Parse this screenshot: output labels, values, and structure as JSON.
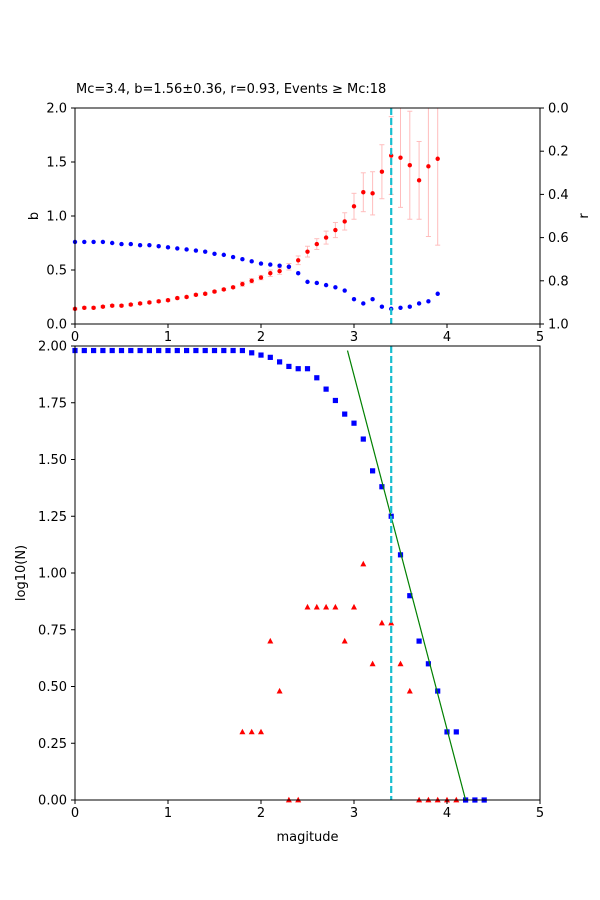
{
  "chart_data": [
    {
      "type": "scatter",
      "title": "Mc=3.4, b=1.56±0.36, r=0.93, Events ≥ Mc:18",
      "xlabel": "",
      "ylabel": "b",
      "y2label": "r",
      "xlim": [
        0,
        5
      ],
      "ylim": [
        0,
        2.0
      ],
      "y2lim": [
        1.0,
        0.0
      ],
      "y2_inverted": true,
      "xticks": [
        "0",
        "1",
        "2",
        "3",
        "4",
        "5"
      ],
      "yticks": [
        "0.0",
        "0.5",
        "1.0",
        "1.5",
        "2.0"
      ],
      "y2ticks": [
        "0.0",
        "0.2",
        "0.4",
        "0.6",
        "0.8",
        "1.0"
      ],
      "grid": false,
      "mc_line": 3.4,
      "colors": {
        "b": "#ff0000",
        "r": "#0000ff",
        "mc": "#17becf",
        "err": "#ffbdbd"
      },
      "series": [
        {
          "axis": "left",
          "marker": "circle",
          "color": "#ff0000",
          "x": [
            0.0,
            0.1,
            0.2,
            0.3,
            0.4,
            0.5,
            0.6,
            0.7,
            0.8,
            0.9,
            1.0,
            1.1,
            1.2,
            1.3,
            1.4,
            1.5,
            1.6,
            1.7,
            1.8,
            1.9,
            2.0,
            2.1,
            2.2,
            2.3,
            2.4,
            2.5,
            2.6,
            2.7,
            2.8,
            2.9,
            3.0,
            3.1,
            3.2,
            3.3,
            3.4,
            3.5,
            3.6,
            3.7,
            3.8,
            3.9
          ],
          "values": [
            0.14,
            0.15,
            0.15,
            0.16,
            0.17,
            0.17,
            0.18,
            0.19,
            0.2,
            0.21,
            0.22,
            0.24,
            0.25,
            0.27,
            0.28,
            0.3,
            0.32,
            0.34,
            0.37,
            0.4,
            0.43,
            0.47,
            0.49,
            0.53,
            0.59,
            0.67,
            0.74,
            0.8,
            0.87,
            0.95,
            1.09,
            1.22,
            1.21,
            1.41,
            1.56,
            1.54,
            1.47,
            1.33,
            1.46,
            1.53
          ],
          "err": [
            0.01,
            0.01,
            0.01,
            0.01,
            0.01,
            0.01,
            0.01,
            0.01,
            0.01,
            0.01,
            0.01,
            0.01,
            0.01,
            0.01,
            0.01,
            0.01,
            0.01,
            0.01,
            0.02,
            0.02,
            0.02,
            0.03,
            0.03,
            0.03,
            0.04,
            0.05,
            0.05,
            0.06,
            0.07,
            0.08,
            0.12,
            0.18,
            0.2,
            0.25,
            0.36,
            0.46,
            0.5,
            0.36,
            0.65,
            0.8
          ]
        },
        {
          "axis": "right",
          "marker": "circle",
          "color": "#0000ff",
          "x": [
            0.0,
            0.1,
            0.2,
            0.3,
            0.4,
            0.5,
            0.6,
            0.7,
            0.8,
            0.9,
            1.0,
            1.1,
            1.2,
            1.3,
            1.4,
            1.5,
            1.6,
            1.7,
            1.8,
            1.9,
            2.0,
            2.1,
            2.2,
            2.3,
            2.4,
            2.5,
            2.6,
            2.7,
            2.8,
            2.9,
            3.0,
            3.1,
            3.2,
            3.3,
            3.4,
            3.5,
            3.6,
            3.7,
            3.8,
            3.9
          ],
          "values": [
            0.62,
            0.62,
            0.62,
            0.62,
            0.625,
            0.63,
            0.63,
            0.635,
            0.635,
            0.64,
            0.645,
            0.65,
            0.655,
            0.66,
            0.665,
            0.675,
            0.68,
            0.69,
            0.7,
            0.71,
            0.72,
            0.725,
            0.73,
            0.735,
            0.765,
            0.805,
            0.81,
            0.82,
            0.83,
            0.845,
            0.885,
            0.905,
            0.885,
            0.92,
            0.93,
            0.925,
            0.92,
            0.905,
            0.895,
            0.86
          ]
        }
      ]
    },
    {
      "type": "scatter",
      "title": "",
      "xlabel": "magitude",
      "ylabel": "log10(N)",
      "xlim": [
        0,
        5
      ],
      "ylim": [
        0,
        2.0
      ],
      "xticks": [
        "0",
        "1",
        "2",
        "3",
        "4",
        "5"
      ],
      "yticks": [
        "0.00",
        "0.25",
        "0.50",
        "0.75",
        "1.00",
        "1.25",
        "1.50",
        "1.75",
        "2.00"
      ],
      "grid": false,
      "mc_line": 3.4,
      "fit_line": {
        "color": "#008000",
        "x": [
          2.93,
          4.2
        ],
        "values": [
          1.98,
          0.0
        ]
      },
      "series": [
        {
          "marker": "square",
          "color": "#0000ff",
          "x": [
            0.0,
            0.1,
            0.2,
            0.3,
            0.4,
            0.5,
            0.6,
            0.7,
            0.8,
            0.9,
            1.0,
            1.1,
            1.2,
            1.3,
            1.4,
            1.5,
            1.6,
            1.7,
            1.8,
            1.9,
            2.0,
            2.1,
            2.2,
            2.3,
            2.4,
            2.5,
            2.6,
            2.7,
            2.8,
            2.9,
            3.0,
            3.1,
            3.2,
            3.3,
            3.4,
            3.5,
            3.6,
            3.7,
            3.8,
            3.9,
            4.0,
            4.1,
            4.2,
            4.3,
            4.4
          ],
          "values": [
            1.98,
            1.98,
            1.98,
            1.98,
            1.98,
            1.98,
            1.98,
            1.98,
            1.98,
            1.98,
            1.98,
            1.98,
            1.98,
            1.98,
            1.98,
            1.98,
            1.98,
            1.98,
            1.98,
            1.97,
            1.96,
            1.95,
            1.93,
            1.91,
            1.9,
            1.9,
            1.86,
            1.81,
            1.76,
            1.7,
            1.66,
            1.59,
            1.45,
            1.38,
            1.25,
            1.08,
            0.9,
            0.7,
            0.6,
            0.48,
            0.3,
            0.3,
            0.0,
            0.0,
            0.0
          ]
        },
        {
          "marker": "triangle",
          "color": "#ff0000",
          "x": [
            1.8,
            1.9,
            2.0,
            2.1,
            2.2,
            2.3,
            2.4,
            2.5,
            2.6,
            2.7,
            2.8,
            2.9,
            3.0,
            3.1,
            3.2,
            3.3,
            3.4,
            3.5,
            3.6,
            3.7,
            3.8,
            3.9,
            4.0,
            4.1
          ],
          "values": [
            0.3,
            0.3,
            0.3,
            0.7,
            0.48,
            0.0,
            0.0,
            0.85,
            0.85,
            0.85,
            0.85,
            0.7,
            0.85,
            1.04,
            0.6,
            0.78,
            0.78,
            0.6,
            0.48,
            0.0,
            0.0,
            0.0,
            0.0,
            0.0
          ]
        }
      ]
    }
  ]
}
